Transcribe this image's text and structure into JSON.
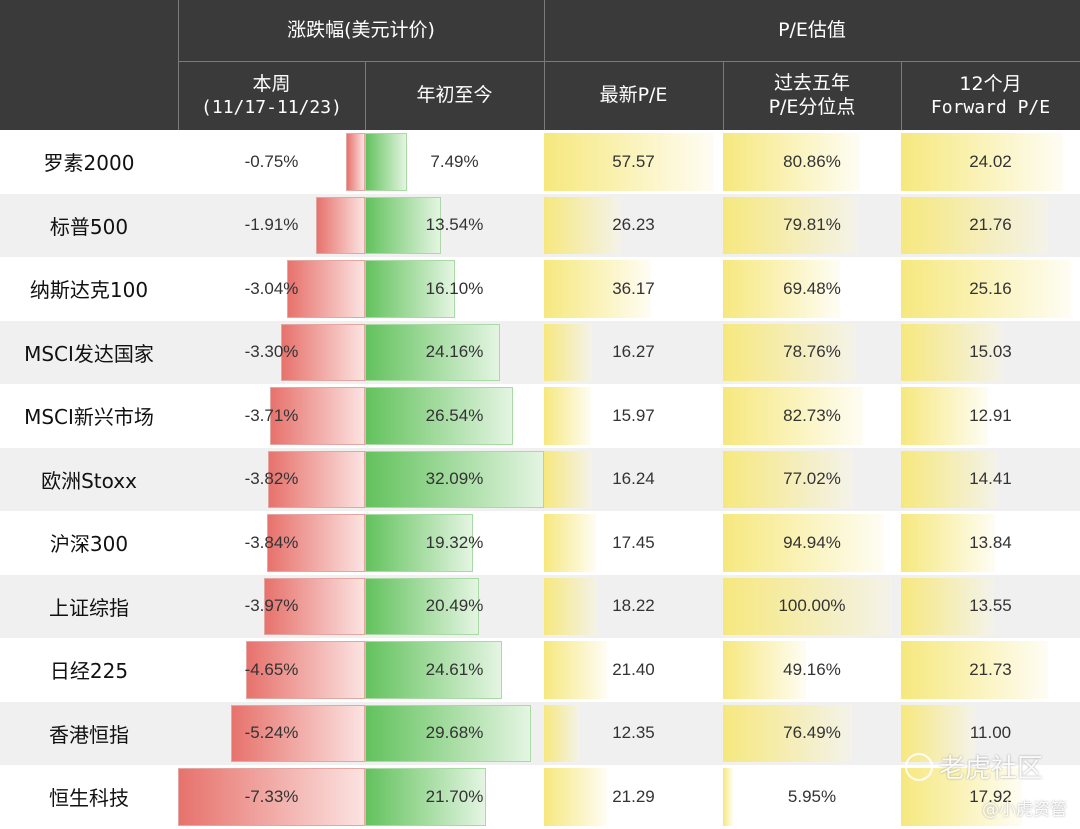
{
  "header": {
    "group_change": "涨跌幅(美元计价)",
    "group_pe": "P/E估值",
    "col_week_line1": "本周",
    "col_week_line2": "(11/17-11/23)",
    "col_ytd": "年初至今",
    "col_pe": "最新P/E",
    "col_pct_line1": "过去五年",
    "col_pct_line2": "P/E分位点",
    "col_fwd_line1": "12个月",
    "col_fwd_line2": "Forward P/E"
  },
  "chart_data": {
    "type": "table",
    "rows": [
      {
        "name": "罗素2000",
        "week": -0.75,
        "ytd": 7.49,
        "pe": 57.57,
        "pct": 80.86,
        "fwd": 24.02
      },
      {
        "name": "标普500",
        "week": -1.91,
        "ytd": 13.54,
        "pe": 26.23,
        "pct": 79.81,
        "fwd": 21.76
      },
      {
        "name": "纳斯达克100",
        "week": -3.04,
        "ytd": 16.1,
        "pe": 36.17,
        "pct": 69.48,
        "fwd": 25.16
      },
      {
        "name": "MSCI发达国家",
        "week": -3.3,
        "ytd": 24.16,
        "pe": 16.27,
        "pct": 78.76,
        "fwd": 15.03
      },
      {
        "name": "MSCI新兴市场",
        "week": -3.71,
        "ytd": 26.54,
        "pe": 15.97,
        "pct": 82.73,
        "fwd": 12.91
      },
      {
        "name": "欧洲Stoxx",
        "week": -3.82,
        "ytd": 32.09,
        "pe": 16.24,
        "pct": 77.02,
        "fwd": 14.41
      },
      {
        "name": "沪深300",
        "week": -3.84,
        "ytd": 19.32,
        "pe": 17.45,
        "pct": 94.94,
        "fwd": 13.84
      },
      {
        "name": "上证综指",
        "week": -3.97,
        "ytd": 20.49,
        "pe": 18.22,
        "pct": 100.0,
        "fwd": 13.55
      },
      {
        "name": "日经225",
        "week": -4.65,
        "ytd": 24.61,
        "pe": 21.4,
        "pct": 49.16,
        "fwd": 21.73
      },
      {
        "name": "香港恒指",
        "week": -5.24,
        "ytd": 29.68,
        "pe": 12.35,
        "pct": 76.49,
        "fwd": 11.0
      },
      {
        "name": "恒生科技",
        "week": -7.33,
        "ytd": 21.7,
        "pe": 21.29,
        "pct": 5.95,
        "fwd": 17.92
      }
    ],
    "labels": {
      "week": [
        "-0.75%",
        "-1.91%",
        "-3.04%",
        "-3.30%",
        "-3.71%",
        "-3.82%",
        "-3.84%",
        "-3.97%",
        "-4.65%",
        "-5.24%",
        "-7.33%"
      ],
      "ytd": [
        "7.49%",
        "13.54%",
        "16.10%",
        "24.16%",
        "26.54%",
        "32.09%",
        "19.32%",
        "20.49%",
        "24.61%",
        "29.68%",
        "21.70%"
      ],
      "pe": [
        "57.57",
        "26.23",
        "36.17",
        "16.27",
        "15.97",
        "16.24",
        "17.45",
        "18.22",
        "21.40",
        "12.35",
        "21.29"
      ],
      "pct": [
        "80.86%",
        "79.81%",
        "69.48%",
        "78.76%",
        "82.73%",
        "77.02%",
        "94.94%",
        "100.00%",
        "49.16%",
        "76.49%",
        "5.95%"
      ],
      "fwd": [
        "24.02",
        "21.76",
        "25.16",
        "15.03",
        "12.91",
        "14.41",
        "13.84",
        "13.55",
        "21.73",
        "11.00",
        "17.92"
      ]
    }
  },
  "watermark": {
    "brand": "老虎社区",
    "account": "@小虎资管"
  }
}
